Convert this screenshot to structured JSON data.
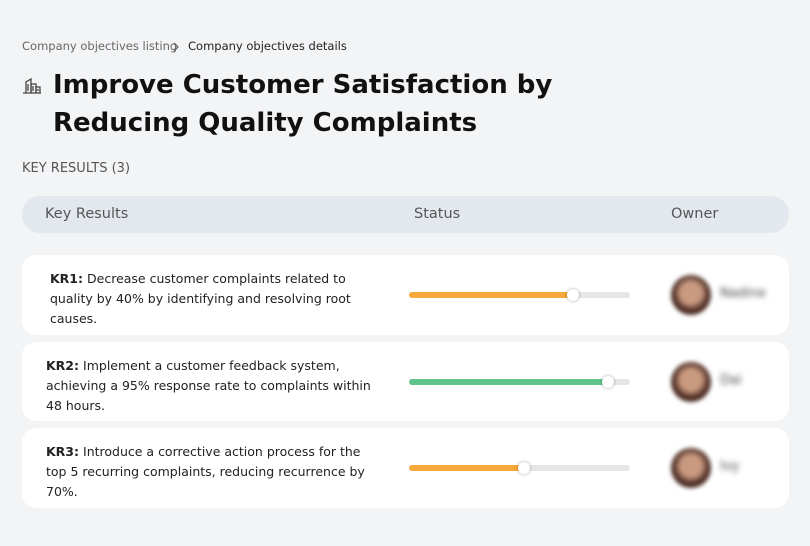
{
  "breadcrumb": [
    "Company objectives listing",
    "Company objectives details"
  ],
  "title": "Improve Customer Satisfaction by Reducing Quality Complaints",
  "section_label": "KEY RESULTS (3)",
  "table": {
    "headers": [
      "Key Results",
      "Status",
      "Owner"
    ],
    "rows": [
      {
        "id": "KR1:",
        "text": "Decrease customer complaints related to quality by 40% by identifying and resolving root causes.",
        "progress": 74,
        "color": "#f7a93b",
        "owner": "Nadine"
      },
      {
        "id": "KR2:",
        "text": "Implement a customer feedback system, achieving a 95% response rate to complaints within 48 hours.",
        "progress": 90,
        "color": "#5ec48c",
        "owner": "Dai"
      },
      {
        "id": "KR3:",
        "text": "Introduce a corrective action process for the top 5 recurring complaints, reducing recurrence by 70%.",
        "progress": 52,
        "color": "#f7a93b",
        "owner": "Ivy"
      }
    ]
  }
}
